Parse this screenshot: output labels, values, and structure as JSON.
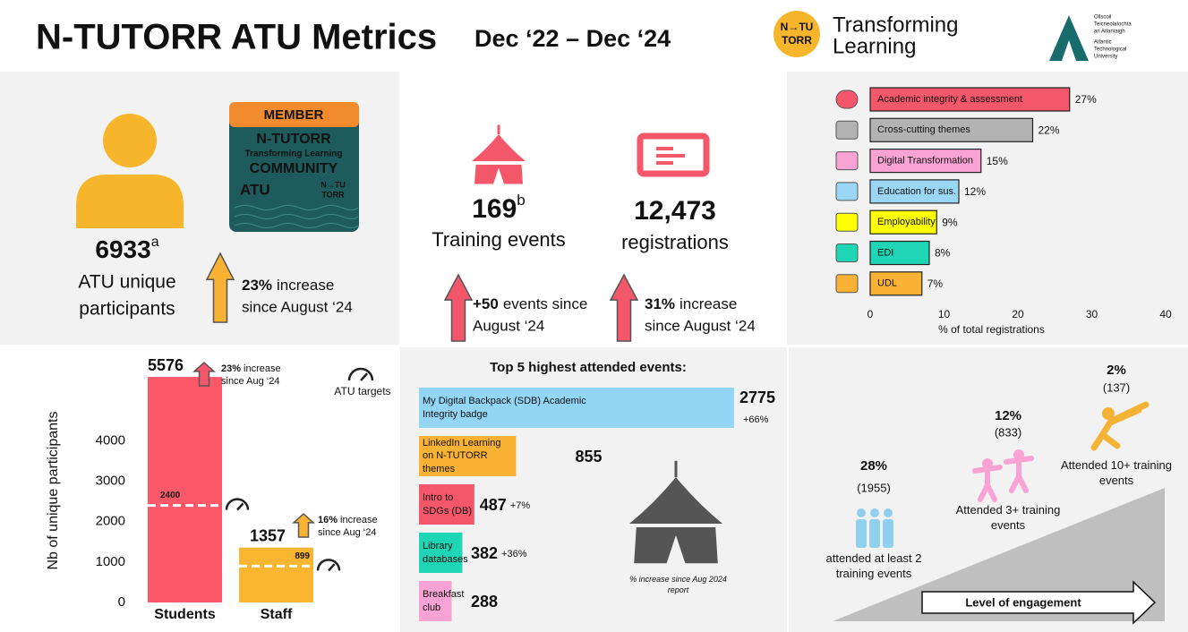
{
  "header": {
    "title": "N-TUTORR ATU Metrics",
    "period": "Dec ‘22 – Dec ‘24",
    "logo_mark": [
      "N→TU",
      "TORR"
    ],
    "logo_text": [
      "Transforming",
      "Learning"
    ],
    "university": [
      "Ollscoil",
      "Teicneolaíochta",
      "an Atlantaigh",
      "Atlantic",
      "Technological",
      "University"
    ]
  },
  "badge": {
    "top": "MEMBER",
    "lines": [
      "N-TUTORR",
      "Transforming Learning",
      "COMMUNITY"
    ],
    "atu": "ATU",
    "mark": [
      "N→TU",
      "TORR"
    ]
  },
  "participants": {
    "value": "6933",
    "note": "a",
    "label": [
      "ATU unique",
      "participants"
    ],
    "increase": "23%",
    "increase_text": [
      "increase",
      "since August ‘24"
    ]
  },
  "events": {
    "value": "169",
    "note": "b",
    "label": "Training events",
    "increase": "+50",
    "increase_text": [
      "events since",
      "August ‘24"
    ]
  },
  "registrations": {
    "value": "12,473",
    "label": "registrations",
    "increase": "31%",
    "increase_text": [
      "increase",
      "since August ‘24"
    ]
  },
  "engagement": {
    "label": "Level of engagement",
    "levels": [
      {
        "percent": "28%",
        "count": "(1955)",
        "text": "attended at least 2 training events"
      },
      {
        "percent": "12%",
        "count": "(833)",
        "text": "Attended 3+ training events"
      },
      {
        "percent": "2%",
        "count": "(137)",
        "text": "Attended 10+ training events"
      }
    ]
  },
  "chart_data": [
    {
      "type": "hbar",
      "categories": [
        "Academic integrity & assessment",
        "Cross-cutting themes",
        "Digital Transformation",
        "Education for sus.",
        "Employability",
        "EDI",
        "UDL"
      ],
      "values": [
        27,
        22,
        15,
        12,
        9,
        8,
        7
      ],
      "value_labels": [
        "27%",
        "22%",
        "15%",
        "12%",
        "9%",
        "8%",
        "7%"
      ],
      "colors": [
        "#f4566a",
        "#b3b3b3",
        "#f8a3d4",
        "#9ad7f5",
        "#ffff00",
        "#1ed6b5",
        "#f9b233"
      ],
      "xlim": [
        0,
        40
      ],
      "xticks": [
        0,
        10,
        20,
        30,
        40
      ],
      "xlabel": "% of total registrations"
    },
    {
      "type": "bar",
      "categories": [
        "Students",
        "Staff"
      ],
      "values": [
        5576,
        1357
      ],
      "colors": [
        "#fd5868",
        "#fbb631"
      ],
      "ylim": [
        0,
        5600
      ],
      "yticks": [
        0,
        1000,
        2000,
        3000,
        4000
      ],
      "ylabel": "Nb of unique participants",
      "targets": {
        "name": "ATU targets",
        "values": [
          2400,
          899
        ]
      },
      "increases": [
        {
          "value": "23%",
          "text": [
            "increase",
            "since Aug ‘24"
          ]
        },
        {
          "value": "16%",
          "text": [
            "increase",
            "since Aug ‘24"
          ]
        }
      ]
    },
    {
      "type": "rank",
      "title": "Top 5 highest attended events:",
      "categories": [
        "My Digital Backpack (SDB) Academic Integrity badge",
        "LinkedIn Learning on N-TUTORR themes",
        "Intro to SDGs (DB)",
        "Library databases",
        "Breakfast club"
      ],
      "values": [
        2775,
        855,
        487,
        382,
        288
      ],
      "colors": [
        "#93d5f5",
        "#f9b233",
        "#f4566a",
        "#1ed6b5",
        "#f8a3d4"
      ],
      "label_colors": [
        "#8fd0ef",
        "#f5b335",
        "#e84a5f",
        "#1cc7a8",
        "#f4a0cf"
      ],
      "changes": [
        "+66%",
        null,
        "+7%",
        "+36%",
        null
      ],
      "note": "% increase since Aug 2024 report"
    }
  ]
}
